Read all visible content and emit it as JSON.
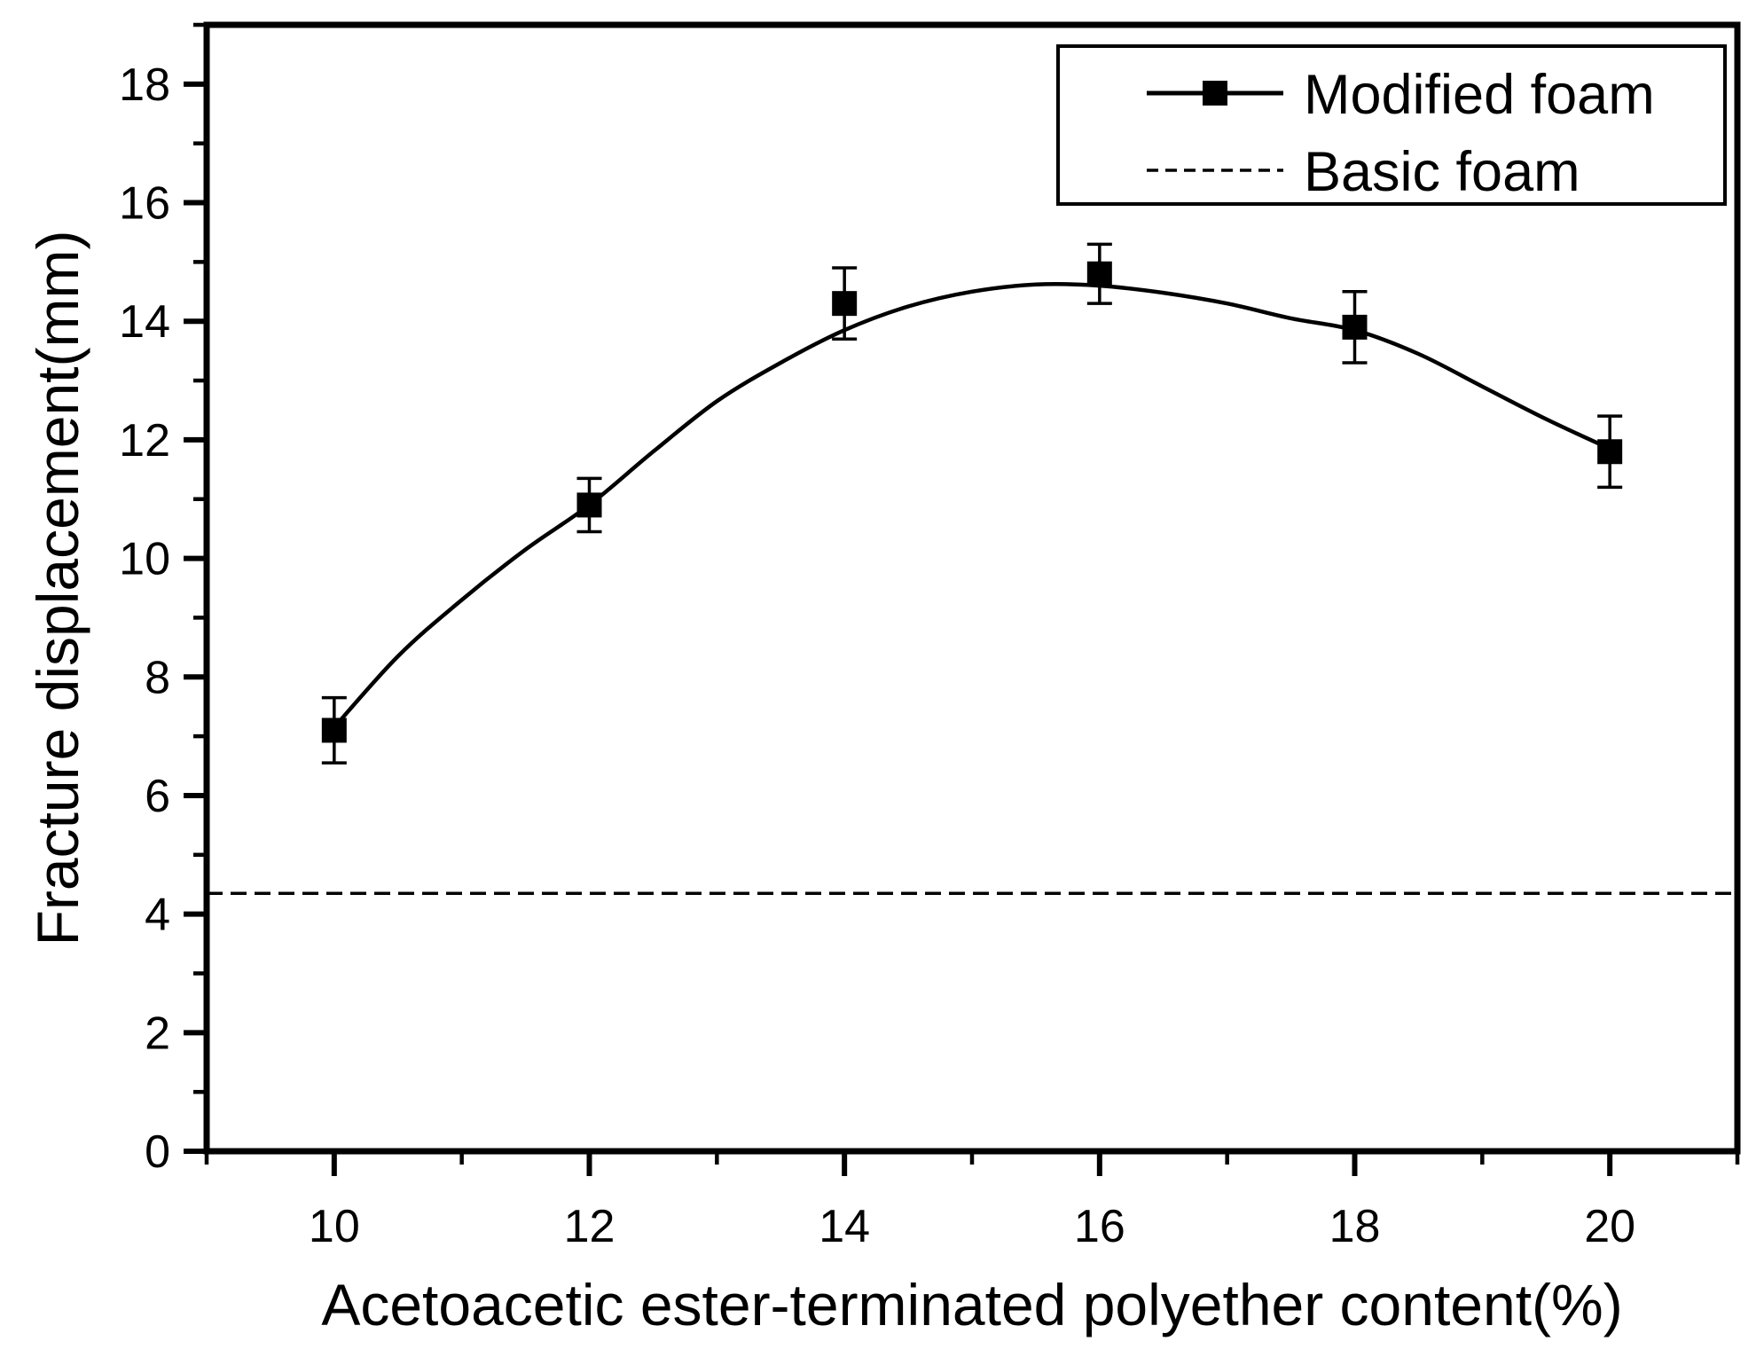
{
  "chart_data": {
    "type": "line",
    "title": "",
    "xlabel": "Acetoacetic ester-terminated polyether content(%)",
    "ylabel": "Fracture displacement(mm)",
    "xlim": [
      9,
      21
    ],
    "ylim": [
      0,
      19
    ],
    "x_major_ticks": [
      10,
      12,
      14,
      16,
      18,
      20
    ],
    "x_minor_ticks": [
      9,
      11,
      13,
      15,
      17,
      19,
      21
    ],
    "y_major_ticks": [
      0,
      2,
      4,
      6,
      8,
      10,
      12,
      14,
      16,
      18
    ],
    "y_minor_ticks": [
      1,
      3,
      5,
      7,
      9,
      11,
      13,
      15,
      17,
      19
    ],
    "grid": false,
    "legend_position": "top-right",
    "colors": {
      "foreground": "#000000",
      "background": "#ffffff"
    },
    "series": [
      {
        "name": "Modified foam",
        "style": "solid line, filled square markers, vertical error bars",
        "x": [
          10,
          12,
          14,
          16,
          18,
          20
        ],
        "y": [
          7.1,
          10.9,
          14.3,
          14.8,
          13.9,
          11.8
        ],
        "y_err": [
          0.55,
          0.45,
          0.6,
          0.5,
          0.6,
          0.6
        ],
        "fit_curve": {
          "x": [
            10,
            10.5,
            11,
            11.5,
            12,
            12.5,
            13,
            13.5,
            14,
            14.5,
            15,
            15.5,
            16,
            16.5,
            17,
            17.5,
            18,
            18.5,
            19,
            19.5,
            20
          ],
          "y": [
            7.15,
            8.35,
            9.3,
            10.15,
            10.9,
            11.8,
            12.65,
            13.3,
            13.85,
            14.25,
            14.5,
            14.62,
            14.6,
            14.48,
            14.3,
            14.05,
            13.85,
            13.45,
            12.9,
            12.35,
            11.85
          ]
        }
      },
      {
        "name": "Basic foam",
        "style": "dashed horizontal line",
        "y_value": 4.35
      }
    ]
  }
}
